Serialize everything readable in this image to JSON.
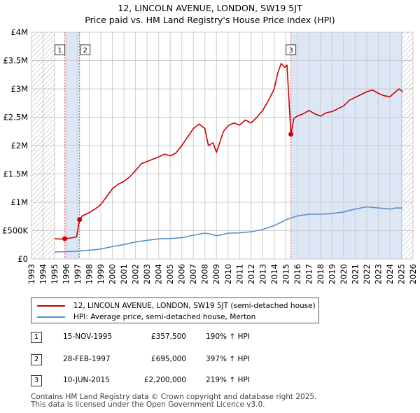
{
  "title_line1": "12, LINCOLN AVENUE, LONDON, SW19 5JT",
  "title_line2": "Price paid vs. HM Land Registry's House Price Index (HPI)",
  "colors": {
    "property": "#cc0000",
    "hpi": "#5b8fc9",
    "shade": "#dce6f5",
    "grid": "#cccccc",
    "hatch": "#aaaaaa",
    "marker_line": "#e05050"
  },
  "chart_data": {
    "type": "line",
    "title": "12, LINCOLN AVENUE, LONDON, SW19 5JT — Price paid vs. HM Land Registry's House Price Index (HPI)",
    "xlim": [
      1993,
      2026
    ],
    "ylim": [
      0,
      4000000
    ],
    "y_ticks": [
      0,
      500000,
      1000000,
      1500000,
      2000000,
      2500000,
      3000000,
      3500000,
      4000000
    ],
    "y_tick_labels": [
      "£0",
      "£500K",
      "£1M",
      "£1.5M",
      "£2M",
      "£2.5M",
      "£3M",
      "£3.5M",
      "£4M"
    ],
    "x_ticks": [
      1993,
      1994,
      1995,
      1996,
      1997,
      1998,
      1999,
      2000,
      2001,
      2002,
      2003,
      2004,
      2005,
      2006,
      2007,
      2008,
      2009,
      2010,
      2011,
      2012,
      2013,
      2014,
      2015,
      2016,
      2017,
      2018,
      2019,
      2020,
      2021,
      2022,
      2023,
      2024,
      2025,
      2026
    ],
    "grid": true,
    "data_start": 1995.0,
    "data_end": 2025.1,
    "series": [
      {
        "name": "12, LINCOLN AVENUE, LONDON, SW19 5JT (semi-detached house)",
        "x": [
          1995.0,
          1995.5,
          1995.88,
          1996.4,
          1996.9,
          1997.16,
          1997.4,
          1998.0,
          1998.5,
          1999.0,
          1999.5,
          2000.0,
          2000.5,
          2001.0,
          2001.5,
          2002.0,
          2002.5,
          2003.0,
          2003.5,
          2004.0,
          2004.5,
          2005.0,
          2005.5,
          2006.0,
          2006.5,
          2007.0,
          2007.5,
          2008.0,
          2008.3,
          2008.7,
          2009.0,
          2009.2,
          2009.6,
          2010.0,
          2010.5,
          2011.0,
          2011.5,
          2012.0,
          2012.5,
          2013.0,
          2013.5,
          2014.0,
          2014.3,
          2014.6,
          2014.9,
          2015.1,
          2015.44,
          2015.7,
          2016.0,
          2016.5,
          2017.0,
          2017.5,
          2018.0,
          2018.5,
          2019.0,
          2019.5,
          2020.0,
          2020.5,
          2021.0,
          2021.5,
          2022.0,
          2022.5,
          2023.0,
          2023.5,
          2024.0,
          2024.5,
          2024.8,
          2025.1
        ],
        "values": [
          357500,
          350000,
          357500,
          370000,
          390000,
          695000,
          760000,
          820000,
          880000,
          960000,
          1100000,
          1240000,
          1320000,
          1370000,
          1450000,
          1560000,
          1680000,
          1720000,
          1760000,
          1800000,
          1850000,
          1820000,
          1870000,
          2000000,
          2150000,
          2300000,
          2380000,
          2300000,
          2000000,
          2050000,
          1880000,
          2000000,
          2250000,
          2350000,
          2400000,
          2360000,
          2450000,
          2400000,
          2500000,
          2620000,
          2800000,
          3000000,
          3280000,
          3450000,
          3380000,
          3420000,
          2200000,
          2480000,
          2520000,
          2560000,
          2620000,
          2560000,
          2520000,
          2580000,
          2600000,
          2650000,
          2700000,
          2800000,
          2850000,
          2900000,
          2950000,
          2980000,
          2920000,
          2880000,
          2860000,
          2950000,
          3000000,
          2950000
        ]
      },
      {
        "name": "HPI: Average price, semi-detached house, Merton",
        "x": [
          1995.0,
          1996.0,
          1997.0,
          1998.0,
          1999.0,
          2000.0,
          2001.0,
          2002.0,
          2003.0,
          2004.0,
          2005.0,
          2006.0,
          2007.0,
          2008.0,
          2008.5,
          2009.0,
          2009.5,
          2010.0,
          2011.0,
          2012.0,
          2013.0,
          2014.0,
          2015.0,
          2016.0,
          2017.0,
          2018.0,
          2019.0,
          2020.0,
          2021.0,
          2022.0,
          2023.0,
          2024.0,
          2024.5,
          2025.1
        ],
        "values": [
          123000,
          128000,
          138000,
          155000,
          175000,
          220000,
          255000,
          300000,
          330000,
          355000,
          360000,
          375000,
          420000,
          455000,
          440000,
          410000,
          430000,
          455000,
          460000,
          480000,
          520000,
          590000,
          690000,
          760000,
          790000,
          790000,
          800000,
          830000,
          880000,
          920000,
          900000,
          880000,
          900000,
          900000
        ]
      }
    ],
    "sales": [
      {
        "label": "1",
        "x": 1995.88,
        "value": 357500
      },
      {
        "label": "2",
        "x": 1997.16,
        "value": 695000
      },
      {
        "label": "3",
        "x": 2015.44,
        "value": 2200000
      }
    ],
    "shaded_ranges": [
      [
        1995.88,
        1997.16
      ],
      [
        2015.44,
        2025.1
      ]
    ]
  },
  "legend": {
    "property_label": "12, LINCOLN AVENUE, LONDON, SW19 5JT (semi-detached house)",
    "hpi_label": "HPI: Average price, semi-detached house, Merton"
  },
  "sales_table": [
    {
      "num": "1",
      "date": "15-NOV-1995",
      "price": "£357,500",
      "hpi": "190% ↑ HPI"
    },
    {
      "num": "2",
      "date": "28-FEB-1997",
      "price": "£695,000",
      "hpi": "397% ↑ HPI"
    },
    {
      "num": "3",
      "date": "10-JUN-2015",
      "price": "£2,200,000",
      "hpi": "219% ↑ HPI"
    }
  ],
  "footer": {
    "line1": "Contains HM Land Registry data © Crown copyright and database right 2025.",
    "line2": "This data is licensed under the Open Government Licence v3.0."
  }
}
